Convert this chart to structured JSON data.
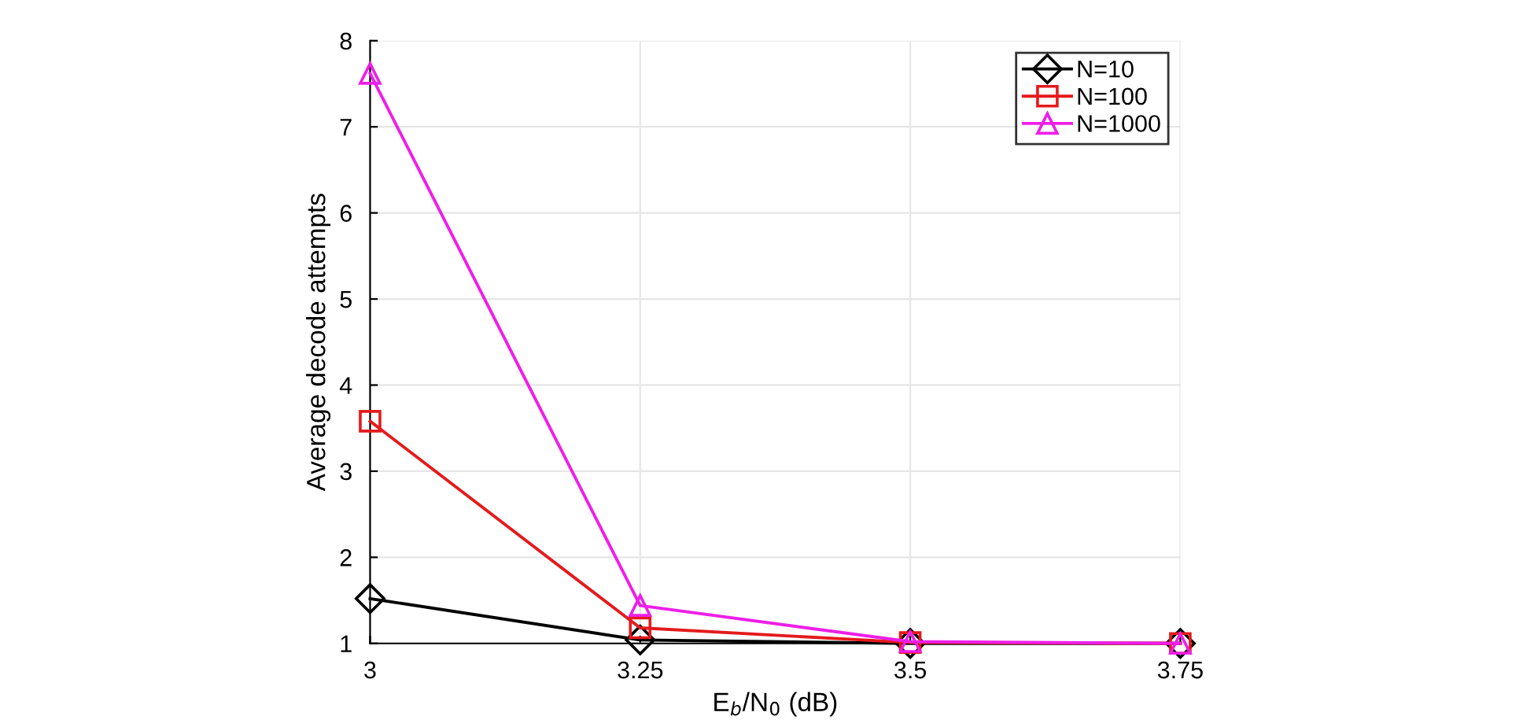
{
  "chart_data": {
    "type": "line",
    "xlabel": "E$_{b}$/N$_{0}$ (dB)",
    "ylabel": "Average decode attempts",
    "x": [
      3,
      3.25,
      3.5,
      3.75
    ],
    "series": [
      {
        "name": "N=10",
        "color": "#000000",
        "marker": "diamond",
        "values": [
          1.52,
          1.04,
          1.0,
          1.0
        ]
      },
      {
        "name": "N=100",
        "color": "#e41a1c",
        "marker": "square",
        "values": [
          3.58,
          1.18,
          1.01,
          1.0
        ]
      },
      {
        "name": "N=1000",
        "color": "#ee1ee8",
        "marker": "triangle",
        "values": [
          7.62,
          1.44,
          1.02,
          1.0
        ]
      }
    ],
    "xlim": [
      3,
      3.75
    ],
    "xticks": [
      3,
      3.25,
      3.5,
      3.75
    ],
    "ylim": [
      1,
      8
    ],
    "yticks": [
      1,
      2,
      3,
      4,
      5,
      6,
      7,
      8
    ],
    "grid": true,
    "legend": "top right",
    "line_style": "solid"
  }
}
